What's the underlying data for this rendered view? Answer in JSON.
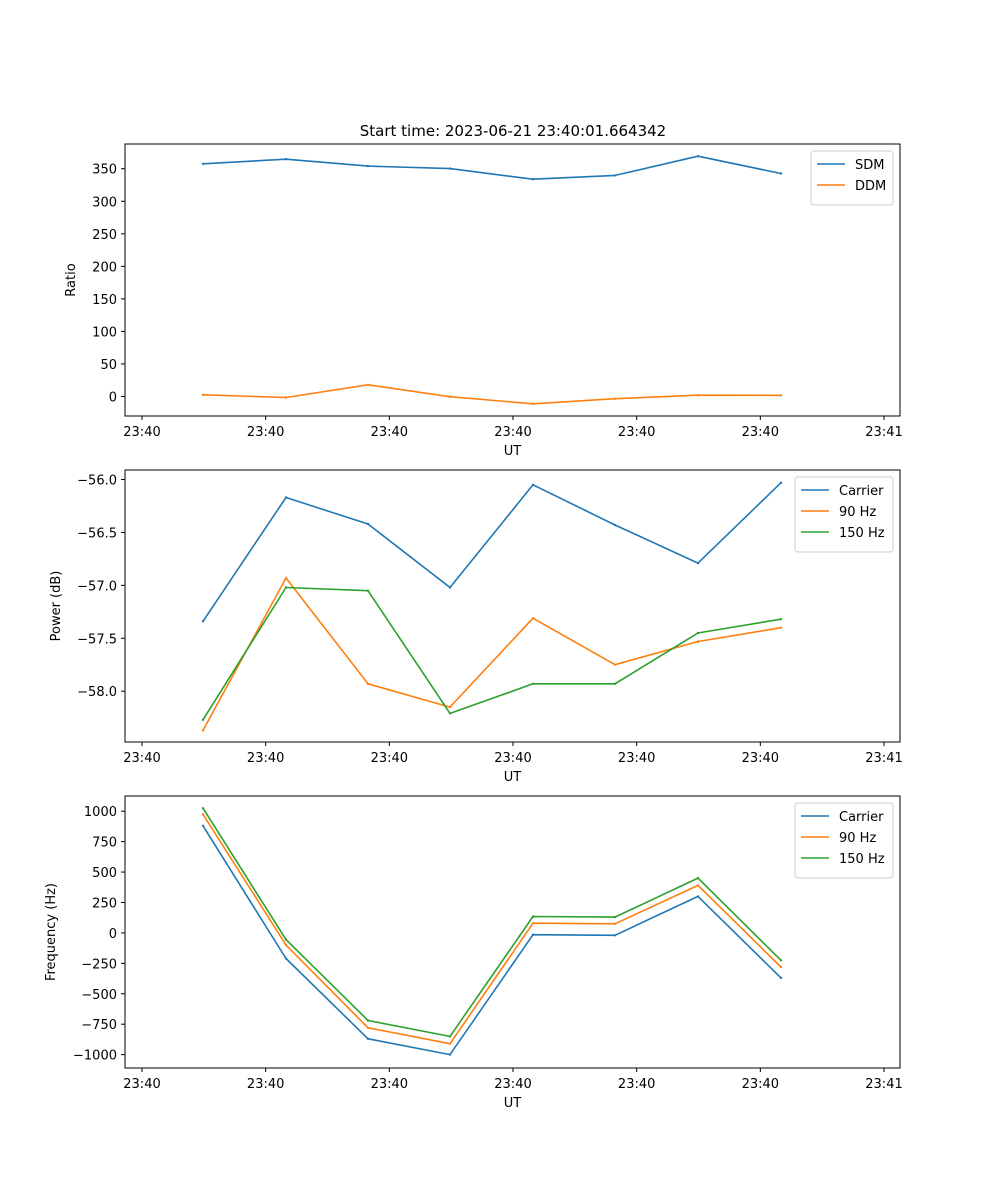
{
  "figure": {
    "title": "Start time: 2023-06-21 23:40:01.664342"
  },
  "colors": {
    "blue": "#1f77b4",
    "orange": "#ff7f0e",
    "green": "#2ca02c"
  },
  "chart_data": [
    {
      "type": "line",
      "title": "Start time: 2023-06-21 23:40:01.664342",
      "xlabel": "UT",
      "ylabel": "Ratio",
      "x_tick_labels": [
        "23:40",
        "23:40",
        "23:40",
        "23:40",
        "23:40",
        "23:40",
        "23:41"
      ],
      "ylim": [
        -30,
        388
      ],
      "y_ticks": [
        0,
        50,
        100,
        150,
        200,
        250,
        300,
        350
      ],
      "grid": false,
      "legend": "upper right",
      "series": [
        {
          "name": "SDM",
          "color": "#1f77b4",
          "values": [
            357.5,
            364.6,
            354.1,
            350.2,
            333.9,
            339.8,
            369.2,
            342.7
          ]
        },
        {
          "name": "DDM",
          "color": "#ff7f0e",
          "values": [
            2.6,
            -1.6,
            18.0,
            -0.4,
            -11.2,
            -3.4,
            2.0,
            1.7
          ]
        }
      ]
    },
    {
      "type": "line",
      "title": "",
      "xlabel": "UT",
      "ylabel": "Power (dB)",
      "x_tick_labels": [
        "23:40",
        "23:40",
        "23:40",
        "23:40",
        "23:40",
        "23:40",
        "23:41"
      ],
      "ylim": [
        -58.48,
        -55.91
      ],
      "y_ticks": [
        -58.0,
        -57.5,
        -57.0,
        -56.5,
        -56.0
      ],
      "y_tick_labels": [
        "−58.0",
        "−57.5",
        "−57.0",
        "−56.5",
        "−56.0"
      ],
      "grid": false,
      "legend": "upper right",
      "series": [
        {
          "name": "Carrier",
          "color": "#1f77b4",
          "values": [
            -57.34,
            -56.17,
            -56.42,
            -57.02,
            -56.05,
            -56.43,
            -56.79,
            -56.03
          ]
        },
        {
          "name": "90 Hz",
          "color": "#ff7f0e",
          "values": [
            -58.37,
            -56.93,
            -57.93,
            -58.15,
            -57.31,
            -57.75,
            -57.53,
            -57.4
          ]
        },
        {
          "name": "150 Hz",
          "color": "#2ca02c",
          "values": [
            -58.27,
            -57.02,
            -57.05,
            -58.21,
            -57.93,
            -57.93,
            -57.45,
            -57.32
          ]
        }
      ]
    },
    {
      "type": "line",
      "title": "",
      "xlabel": "UT",
      "ylabel": "Frequency (Hz)",
      "x_tick_labels": [
        "23:40",
        "23:40",
        "23:40",
        "23:40",
        "23:40",
        "23:40",
        "23:41"
      ],
      "ylim": [
        -1110,
        1125
      ],
      "y_ticks": [
        -1000,
        -750,
        -500,
        -250,
        0,
        250,
        500,
        750,
        1000
      ],
      "y_tick_labels": [
        "−1000",
        "−750",
        "−500",
        "−250",
        "0",
        "250",
        "500",
        "750",
        "1000"
      ],
      "grid": false,
      "legend": "upper right",
      "series": [
        {
          "name": "Carrier",
          "color": "#1f77b4",
          "values": [
            880,
            -210,
            -870,
            -1000,
            -15,
            -20,
            300,
            -370
          ]
        },
        {
          "name": "90 Hz",
          "color": "#ff7f0e",
          "values": [
            975,
            -100,
            -780,
            -910,
            80,
            75,
            390,
            -280
          ]
        },
        {
          "name": "150 Hz",
          "color": "#2ca02c",
          "values": [
            1025,
            -55,
            -720,
            -850,
            135,
            130,
            450,
            -225
          ]
        }
      ]
    }
  ]
}
